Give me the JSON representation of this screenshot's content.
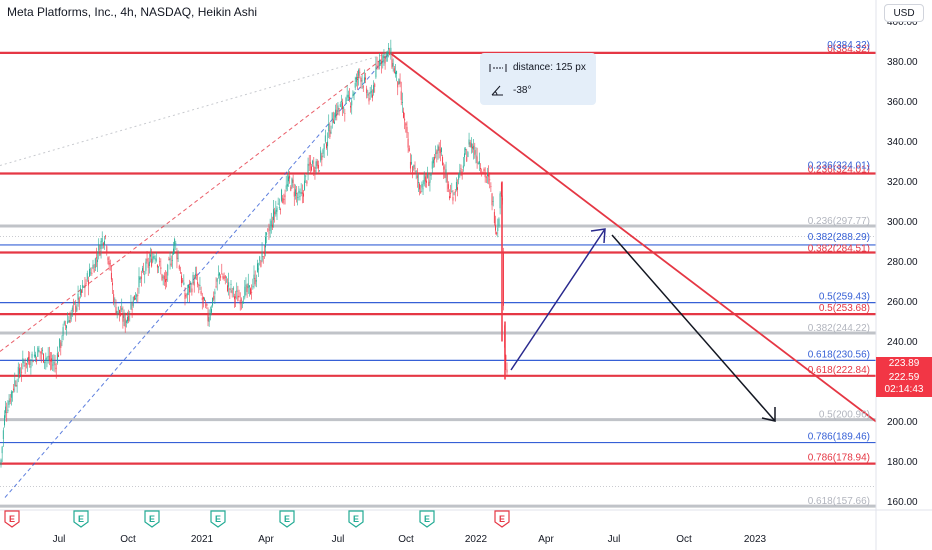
{
  "header": {
    "title": "Meta Platforms, Inc., 4h, NASDAQ, Heikin Ashi",
    "currency": "USD"
  },
  "measure": {
    "distance": "distance: 125 px",
    "angle": "-38°"
  },
  "price_scale": {
    "ticks": [
      "400.00",
      "380.00",
      "360.00",
      "340.00",
      "320.00",
      "300.00",
      "280.00",
      "260.00",
      "240.00",
      "220.00",
      "200.00",
      "180.00",
      "160.00"
    ],
    "current": {
      "price": "223.89",
      "last": "222.59",
      "countdown": "02:14:43"
    }
  },
  "time_scale": {
    "labels": [
      "Jul",
      "Oct",
      "2021",
      "Apr",
      "Jul",
      "Oct",
      "2022",
      "Apr",
      "Jul",
      "Oct",
      "2023"
    ]
  },
  "fib_labels": {
    "red": [
      "0(384.32)",
      "0.236(324.01)",
      "0.382(284.51)",
      "0.5(253.68)",
      "0.618(222.84)",
      "0.786(178.94)"
    ],
    "blue": [
      "0(384.32)",
      "0.236(324.01)",
      "0.382(288.29)",
      "0.5(259.43)",
      "0.618(230.56)",
      "0.786(189.46)"
    ],
    "gray": [
      "0.236(297.77)",
      "0.382(244.22)",
      "0.5(200.96)",
      "0.618(157.66)"
    ]
  },
  "events": [
    "E",
    "E",
    "E",
    "E",
    "E",
    "E",
    "E",
    "E"
  ],
  "colors": {
    "red": "#e53744",
    "blue": "#3660d6",
    "gray": "#c0c3c8",
    "up": "#22ab94",
    "down": "#f23645",
    "navy": "#2a2a8e"
  },
  "chart_data": {
    "type": "candlestick",
    "title": "Meta Platforms, Inc., 4h, NASDAQ, Heikin Ashi",
    "ylim": [
      150,
      405
    ],
    "y_ticks": [
      160,
      180,
      200,
      220,
      240,
      260,
      280,
      300,
      320,
      340,
      360,
      380,
      400
    ],
    "x_ticks": [
      "Jul",
      "Oct",
      "2021",
      "Apr",
      "Jul",
      "Oct",
      "2022",
      "Apr",
      "Jul",
      "Oct",
      "2023"
    ],
    "current_price": 223.89,
    "last_close": 222.59,
    "fib_red": [
      384.32,
      324.01,
      284.51,
      253.68,
      222.84,
      178.94
    ],
    "fib_blue": [
      384.32,
      324.01,
      288.29,
      259.43,
      230.56,
      189.46
    ],
    "fib_gray": [
      297.77,
      244.22,
      200.96,
      157.66
    ],
    "price_path": [
      [
        0,
        175
      ],
      [
        5,
        205
      ],
      [
        15,
        220
      ],
      [
        25,
        230
      ],
      [
        40,
        235
      ],
      [
        55,
        228
      ],
      [
        65,
        248
      ],
      [
        80,
        262
      ],
      [
        95,
        280
      ],
      [
        105,
        295
      ],
      [
        115,
        258
      ],
      [
        125,
        250
      ],
      [
        140,
        270
      ],
      [
        155,
        285
      ],
      [
        165,
        268
      ],
      [
        175,
        290
      ],
      [
        185,
        262
      ],
      [
        195,
        272
      ],
      [
        208,
        252
      ],
      [
        220,
        275
      ],
      [
        235,
        262
      ],
      [
        250,
        265
      ],
      [
        262,
        282
      ],
      [
        275,
        305
      ],
      [
        290,
        320
      ],
      [
        300,
        310
      ],
      [
        310,
        328
      ],
      [
        320,
        330
      ],
      [
        335,
        355
      ],
      [
        350,
        360
      ],
      [
        360,
        375
      ],
      [
        370,
        360
      ],
      [
        380,
        382
      ],
      [
        390,
        384
      ],
      [
        400,
        365
      ],
      [
        410,
        330
      ],
      [
        420,
        318
      ],
      [
        430,
        322
      ],
      [
        440,
        338
      ],
      [
        450,
        312
      ],
      [
        460,
        322
      ],
      [
        470,
        340
      ],
      [
        480,
        330
      ],
      [
        490,
        318
      ],
      [
        497,
        295
      ],
      [
        502,
        322
      ],
      [
        504,
        245
      ],
      [
        507,
        223
      ]
    ]
  }
}
